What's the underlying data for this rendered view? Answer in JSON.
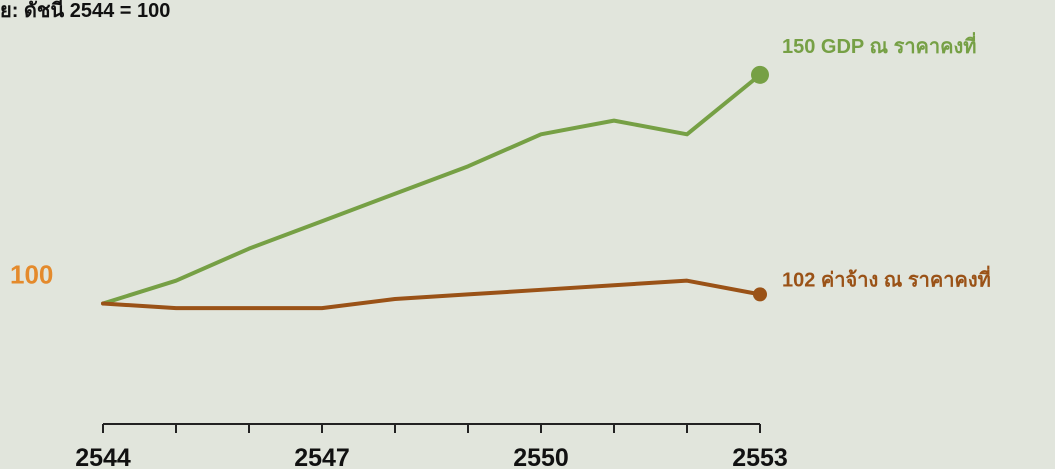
{
  "colors": {
    "background": "#e1e5dc",
    "gdp": "#76a045",
    "wage": "#9a5217",
    "baseline": "#e48a2c",
    "axis": "#222222"
  },
  "chart_data": {
    "type": "line",
    "subtitle": "ย: ดัชนี 2544 = 100",
    "baseline_label": "100",
    "x": [
      2544,
      2545,
      2546,
      2547,
      2548,
      2549,
      2550,
      2551,
      2552,
      2553
    ],
    "xticks": [
      "2544",
      "2547",
      "2550",
      "2553"
    ],
    "ylim": [
      80,
      155
    ],
    "grid": false,
    "series": [
      {
        "name": "GDP ณ ราคาคงที่",
        "end_value_label": "150",
        "values": [
          100,
          105,
          112,
          118,
          124,
          130,
          137,
          140,
          137,
          150
        ]
      },
      {
        "name": "ค่าจ้าง ณ ราคาคงที่",
        "end_value_label": "102",
        "values": [
          100,
          99,
          99,
          99,
          101,
          102,
          103,
          104,
          105,
          102
        ]
      }
    ]
  }
}
